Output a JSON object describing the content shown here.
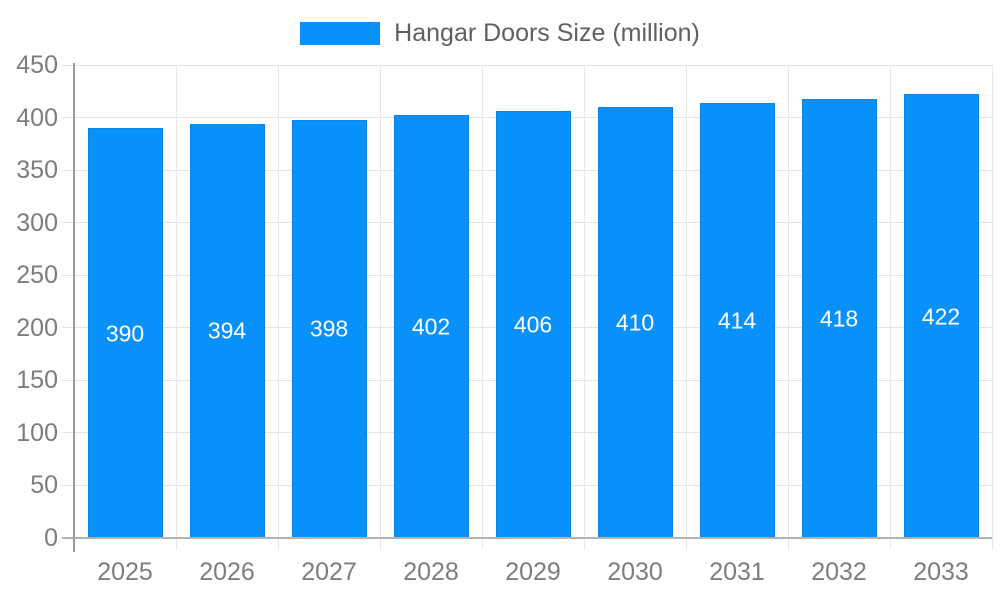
{
  "legend": {
    "label": "Hangar Doors Size (million)"
  },
  "colors": {
    "bar": "#0991fb",
    "bar_border": "#0b85e4",
    "grid": "#e3e3e3",
    "grid_vertical": "#e7e7e7",
    "axis_line": "#9c9c9c",
    "baseline": "#b2b2b2",
    "axis_text": "#7d7d7d",
    "legend_text": "#606060",
    "value_text": "#ffffff",
    "background": "#ffffff"
  },
  "chart_data": {
    "type": "bar",
    "title": "Hangar Doors Size (million)",
    "categories": [
      "2025",
      "2026",
      "2027",
      "2028",
      "2029",
      "2030",
      "2031",
      "2032",
      "2033"
    ],
    "values": [
      390,
      394,
      398,
      402,
      406,
      410,
      414,
      418,
      422
    ],
    "series": [
      {
        "name": "Hangar Doors Size (million)",
        "values": [
          390,
          394,
          398,
          402,
          406,
          410,
          414,
          418,
          422
        ]
      }
    ],
    "xlabel": "",
    "ylabel": "",
    "ylim": [
      0,
      450
    ],
    "yticks": [
      0,
      50,
      100,
      150,
      200,
      250,
      300,
      350,
      400,
      450
    ],
    "grid": true,
    "legend_position": "top",
    "value_labels": "inside-center"
  }
}
